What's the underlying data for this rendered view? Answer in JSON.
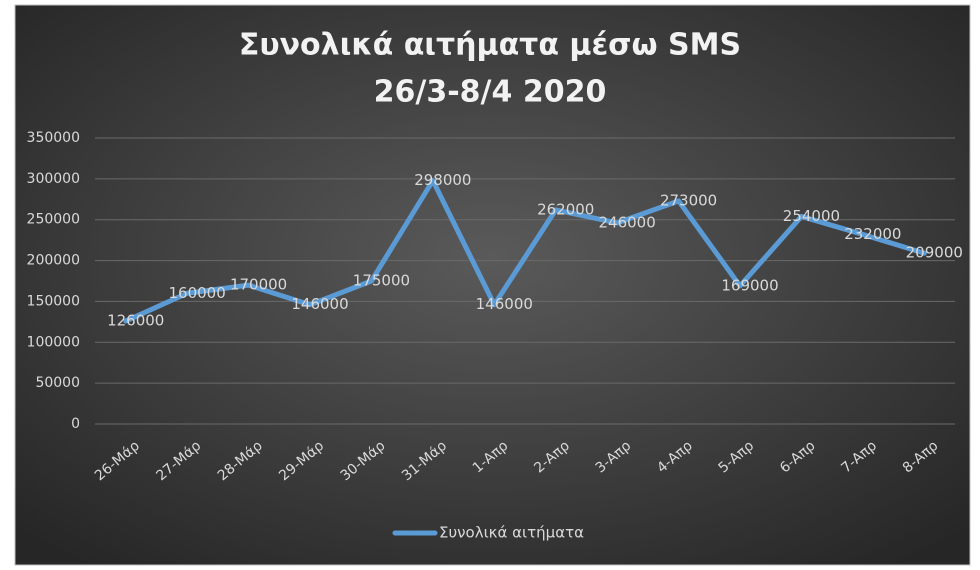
{
  "chart_data": {
    "type": "line",
    "title": "Συνολικά αιτήματα μέσω SMS",
    "subtitle": "26/3-8/4 2020",
    "categories": [
      "26-Μάρ",
      "27-Μάρ",
      "28-Μάρ",
      "29-Μάρ",
      "30-Μάρ",
      "31-Μάρ",
      "1-Απρ",
      "2-Απρ",
      "3-Απρ",
      "4-Απρ",
      "5-Απρ",
      "6-Απρ",
      "7-Απρ",
      "8-Απρ"
    ],
    "series": [
      {
        "name": "Συνολικά αιτήματα",
        "color": "#5b9bd5",
        "values": [
          126000,
          160000,
          170000,
          146000,
          175000,
          298000,
          146000,
          262000,
          246000,
          273000,
          169000,
          254000,
          232000,
          209000
        ]
      }
    ],
    "ylim": [
      0,
      350000
    ],
    "yticks": [
      0,
      50000,
      100000,
      150000,
      200000,
      250000,
      300000,
      350000
    ],
    "grid": true,
    "legend": "bottom"
  }
}
